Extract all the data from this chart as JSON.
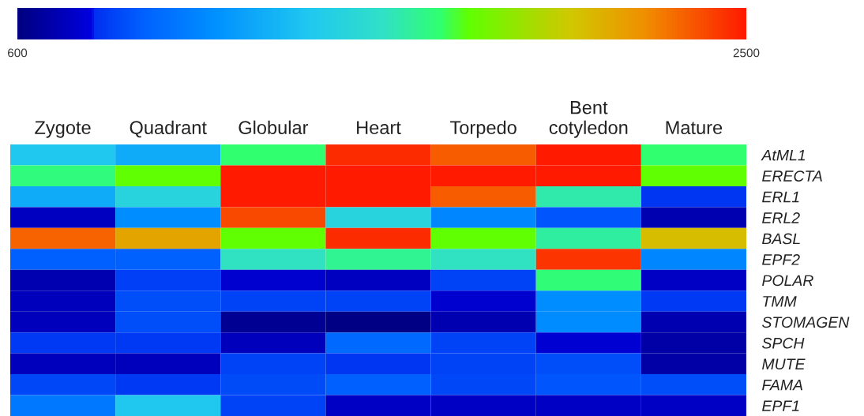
{
  "chart_data": {
    "type": "heatmap",
    "categories": [
      "Zygote",
      "Quadrant",
      "Globular",
      "Heart",
      "Torpedo",
      "Bent\ncotyledon",
      "Mature"
    ],
    "y_categories": [
      "AtML1",
      "ERECTA",
      "ERL1",
      "ERL2",
      "BASL",
      "EPF2",
      "POLAR",
      "TMM",
      "STOMAGEN",
      "SPCH",
      "MUTE",
      "FAMA",
      "EPF1"
    ],
    "cells": [
      [
        1360,
        1230,
        1700,
        2460,
        2350,
        2500,
        1700
      ],
      [
        1680,
        1780,
        2500,
        2500,
        2500,
        2500,
        1780
      ],
      [
        1230,
        1450,
        2500,
        2500,
        2350,
        1600,
        820
      ],
      [
        730,
        1100,
        2390,
        1450,
        1080,
        900,
        700
      ],
      [
        2330,
        2160,
        1780,
        2460,
        1780,
        1620,
        2080
      ],
      [
        920,
        930,
        1560,
        1640,
        1560,
        2440,
        1080
      ],
      [
        700,
        840,
        760,
        730,
        850,
        1690,
        740
      ],
      [
        720,
        880,
        850,
        850,
        760,
        1100,
        830
      ],
      [
        720,
        880,
        640,
        610,
        700,
        1090,
        700
      ],
      [
        830,
        830,
        720,
        960,
        850,
        770,
        680
      ],
      [
        720,
        720,
        850,
        820,
        850,
        880,
        680
      ],
      [
        860,
        830,
        870,
        920,
        860,
        900,
        880
      ],
      [
        1020,
        1360,
        850,
        740,
        740,
        740,
        740
      ]
    ],
    "clim": [
      600,
      2500
    ],
    "cticks": [
      600,
      2500
    ]
  }
}
